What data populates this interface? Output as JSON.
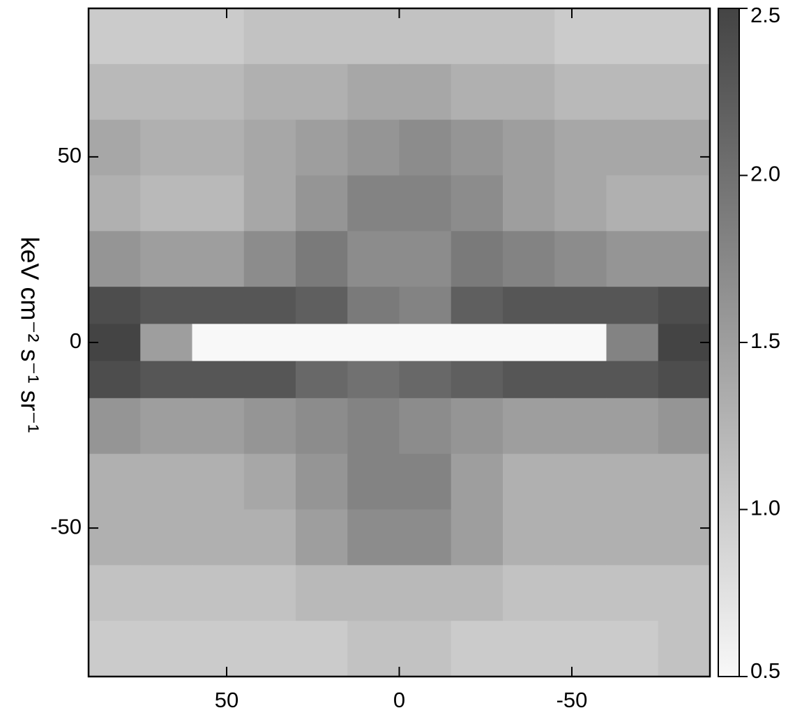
{
  "chart_data": {
    "type": "heatmap",
    "y_label": "keV cm⁻² s⁻¹ sr⁻¹",
    "x_bins": [
      90,
      75,
      60,
      45,
      30,
      15,
      0,
      -15,
      -30,
      -45,
      -60,
      -75,
      -90
    ],
    "y_bins": [
      90,
      75,
      60,
      45,
      30,
      15,
      5,
      -5,
      -15,
      -30,
      -45,
      -60,
      -75,
      -90
    ],
    "z": [
      [
        1.0,
        1.0,
        1.0,
        1.1,
        1.1,
        1.1,
        1.1,
        1.1,
        1.1,
        1.0,
        1.0,
        1.0
      ],
      [
        1.2,
        1.2,
        1.2,
        1.3,
        1.3,
        1.4,
        1.4,
        1.3,
        1.3,
        1.2,
        1.2,
        1.2
      ],
      [
        1.4,
        1.3,
        1.3,
        1.4,
        1.5,
        1.6,
        1.7,
        1.6,
        1.5,
        1.4,
        1.4,
        1.4
      ],
      [
        1.3,
        1.2,
        1.2,
        1.4,
        1.6,
        1.8,
        1.8,
        1.7,
        1.5,
        1.4,
        1.3,
        1.3
      ],
      [
        1.6,
        1.5,
        1.5,
        1.7,
        1.9,
        1.7,
        1.7,
        1.9,
        1.8,
        1.7,
        1.6,
        1.6
      ],
      [
        2.4,
        2.3,
        2.3,
        2.3,
        2.2,
        1.9,
        1.8,
        2.2,
        2.3,
        2.3,
        2.3,
        2.4
      ],
      [
        2.5,
        1.5,
        0.5,
        0.5,
        0.5,
        0.5,
        0.5,
        0.5,
        0.5,
        0.5,
        1.8,
        2.5
      ],
      [
        2.4,
        2.3,
        2.3,
        2.3,
        2.1,
        2.0,
        2.1,
        2.2,
        2.3,
        2.3,
        2.3,
        2.4
      ],
      [
        1.6,
        1.5,
        1.5,
        1.6,
        1.7,
        1.8,
        1.7,
        1.6,
        1.5,
        1.5,
        1.5,
        1.6
      ],
      [
        1.3,
        1.3,
        1.3,
        1.4,
        1.6,
        1.8,
        1.8,
        1.5,
        1.3,
        1.3,
        1.3,
        1.3
      ],
      [
        1.3,
        1.3,
        1.3,
        1.3,
        1.5,
        1.7,
        1.7,
        1.5,
        1.3,
        1.3,
        1.3,
        1.3
      ],
      [
        1.1,
        1.1,
        1.1,
        1.1,
        1.2,
        1.2,
        1.2,
        1.2,
        1.1,
        1.1,
        1.1,
        1.1
      ],
      [
        1.0,
        1.0,
        1.0,
        1.0,
        1.0,
        1.1,
        1.1,
        1.0,
        1.0,
        1.0,
        1.0,
        1.1
      ]
    ],
    "xlim": [
      90,
      -90
    ],
    "xticks": [
      50,
      0,
      -50
    ],
    "ylim": [
      -90,
      90
    ],
    "yticks": [
      50,
      0,
      -50
    ],
    "clim": [
      0.5,
      2.5
    ],
    "cticks": [
      0.5,
      {
        "value": 1,
        "label": "1.0"
      },
      1.5,
      {
        "value": 2,
        "label": "2.0"
      },
      2.5
    ],
    "colormap": [
      "#f8f8f8",
      "#444444"
    ]
  }
}
